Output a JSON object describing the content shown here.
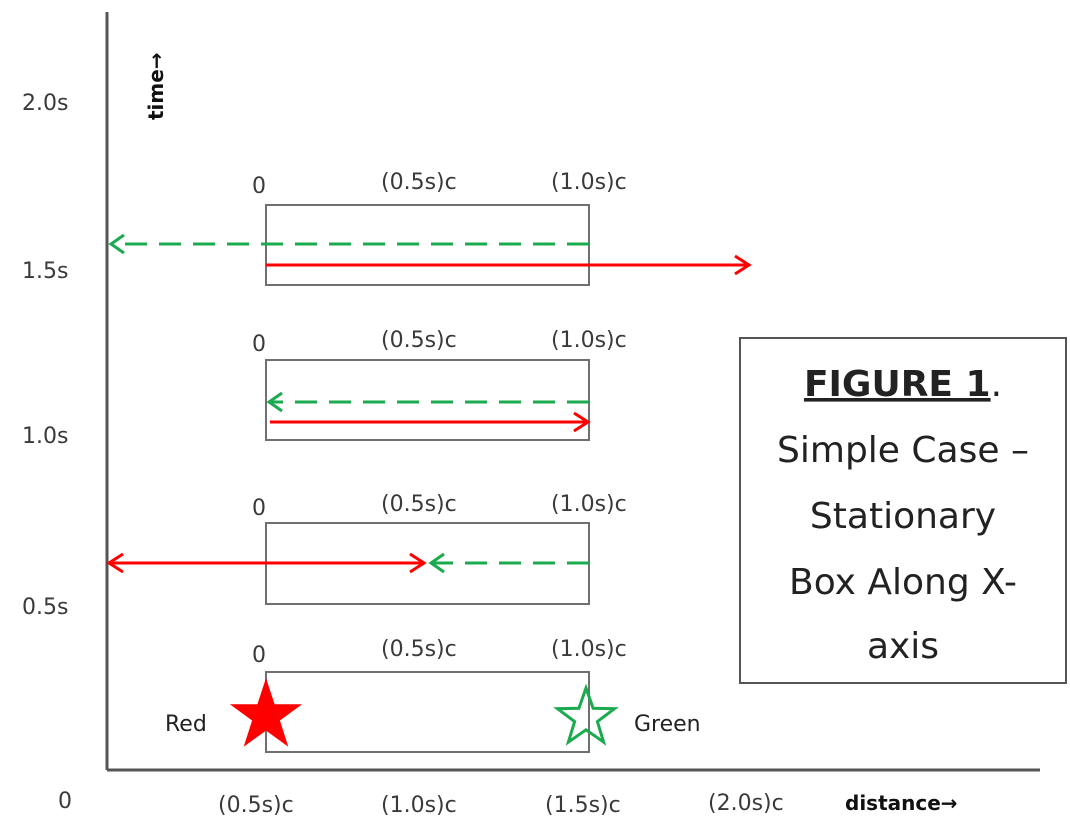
{
  "axes": {
    "y_ticks": [
      "2.0s",
      "1.5s",
      "1.0s",
      "0.5s"
    ],
    "origin_label": "0",
    "x_ticks": [
      "(0.5s)c",
      "(1.0s)c",
      "(1.5s)c",
      "(2.0s)c"
    ],
    "y_name": "time→",
    "x_name": "distance→"
  },
  "box_labels": [
    "0",
    "(0.5s)c",
    "(1.0s)c"
  ],
  "markers": {
    "red_label": "Red",
    "green_label": "Green"
  },
  "colors": {
    "red": "#ff0000",
    "green": "#1aab4f",
    "box": "#707070",
    "axis": "#555555"
  },
  "caption": {
    "title": "FIGURE 1",
    "title_suffix": ".",
    "lines": [
      "Simple Case –",
      "Stationary",
      "Box Along X-",
      "axis"
    ]
  }
}
